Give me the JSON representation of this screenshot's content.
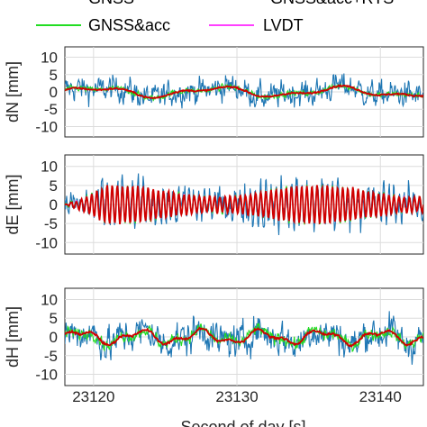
{
  "chart_data": {
    "type": "line",
    "legend": {
      "placement": "top",
      "entries": [
        {
          "name": "GNSS",
          "color": "#1f77b4",
          "clipped": true
        },
        {
          "name": "GNSS&acc+RTS",
          "color": "#d00000",
          "clipped": true
        },
        {
          "name": "GNSS&acc",
          "color": "#22dd22"
        },
        {
          "name": "LVDT",
          "color": "#ff40ff"
        }
      ]
    },
    "xlabel": "Second of day [s]",
    "xlim": [
      23118,
      23143
    ],
    "xticks": [
      23120,
      23130,
      23140
    ],
    "grid": true,
    "panels": [
      {
        "id": "dN",
        "ylabel": "dN [mm]",
        "ylim": [
          -13,
          13
        ],
        "yticks": [
          10,
          5,
          0,
          -5,
          -10
        ],
        "series": {
          "GNSS": {
            "noise": 2.4,
            "drift_amp": 1.2,
            "drift_period": 8.5
          },
          "GNSS&acc": {
            "noise": 0.5,
            "drift_amp": 1.2,
            "drift_period": 8.5
          },
          "GNSS&acc+RTS": {
            "noise": 0.15,
            "drift_amp": 1.2,
            "drift_period": 8.5
          },
          "LVDT": {
            "osc_amp": 0
          }
        }
      },
      {
        "id": "dE",
        "ylabel": "dE [mm]",
        "ylim": [
          -13,
          13
        ],
        "yticks": [
          10,
          5,
          0,
          -5,
          -10
        ],
        "series": {
          "GNSS": {
            "noise": 2.5,
            "osc_amp": 5.5,
            "osc_freq": 2.8
          },
          "GNSS&acc": {
            "noise": 0.4,
            "osc_amp": 5.0,
            "osc_freq": 2.8
          },
          "GNSS&acc+RTS": {
            "noise": 0.2,
            "osc_amp": 5.0,
            "osc_freq": 2.8
          },
          "LVDT": {
            "osc_amp": 4.8,
            "osc_freq": 2.8
          }
        }
      },
      {
        "id": "dH",
        "ylabel": "dH [mm]",
        "ylim": [
          -13,
          13
        ],
        "yticks": [
          10,
          5,
          0,
          -5,
          -10
        ],
        "series": {
          "GNSS": {
            "noise": 3.0,
            "drift_amp": 1.5,
            "drift_period": 4.2
          },
          "GNSS&acc": {
            "noise": 1.0,
            "drift_amp": 1.5,
            "drift_period": 4.2
          },
          "GNSS&acc+RTS": {
            "noise": 0.2,
            "drift_amp": 1.5,
            "drift_period": 4.2
          },
          "LVDT": {
            "osc_amp": 0
          }
        }
      }
    ]
  }
}
